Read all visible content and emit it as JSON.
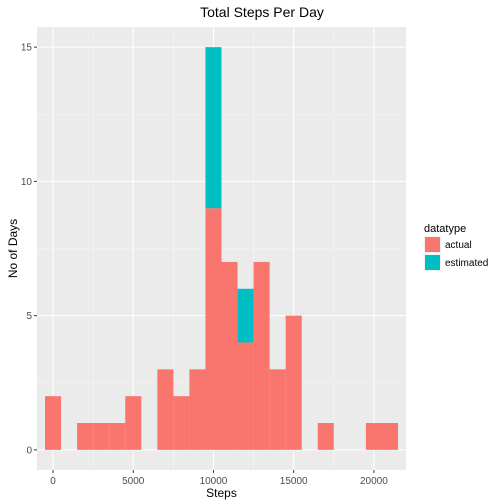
{
  "chart_data": {
    "type": "bar",
    "subtype": "stacked-histogram",
    "title": "Total Steps Per Day",
    "xlabel": "Steps",
    "ylabel": "No of Days",
    "bin_width": 1000,
    "xlim": [
      -1000,
      22000
    ],
    "ylim": [
      -0.75,
      15.75
    ],
    "x_ticks": [
      0,
      5000,
      10000,
      15000,
      20000
    ],
    "x_tick_labels": [
      "0",
      "5000",
      "10000",
      "15000",
      "20000"
    ],
    "y_ticks": [
      0,
      5,
      10,
      15
    ],
    "y_tick_labels": [
      "0",
      "5",
      "10",
      "15"
    ],
    "grid": true,
    "legend": {
      "title": "datatype",
      "placement": "right"
    },
    "x": [
      0,
      1000,
      2000,
      3000,
      4000,
      5000,
      6000,
      7000,
      8000,
      9000,
      10000,
      11000,
      12000,
      13000,
      14000,
      15000,
      16000,
      17000,
      18000,
      19000,
      20000,
      21000
    ],
    "series": [
      {
        "name": "actual",
        "color": "#F8766D",
        "values": [
          2,
          0,
          1,
          1,
          1,
          2,
          0,
          3,
          2,
          3,
          9,
          7,
          4,
          7,
          3,
          5,
          0,
          1,
          0,
          0,
          1,
          1
        ]
      },
      {
        "name": "estimated",
        "color": "#00BFC4",
        "values": [
          0,
          0,
          0,
          0,
          0,
          0,
          0,
          0,
          0,
          0,
          6,
          0,
          2,
          0,
          0,
          0,
          0,
          0,
          0,
          0,
          0,
          0
        ]
      }
    ]
  }
}
